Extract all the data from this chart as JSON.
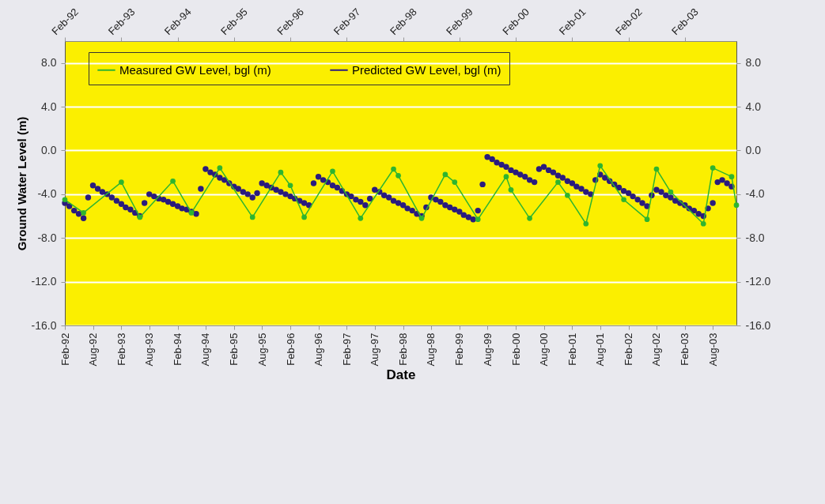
{
  "chart_data": {
    "type": "line",
    "xlabel": "Date",
    "ylabel": "Ground Water Level (m)",
    "legend": "top",
    "grid": "y",
    "marker": "circle",
    "xlim": [
      "1992-02",
      "2004-01"
    ],
    "x2lim": [
      "1992-02",
      "2004-01"
    ],
    "ylim": [
      -16,
      10
    ],
    "y2lim": [
      -16,
      10
    ],
    "yticks": [
      {
        "value": 8,
        "label": "8.0"
      },
      {
        "value": 4,
        "label": "4.0"
      },
      {
        "value": 0,
        "label": "0.0"
      },
      {
        "value": -4,
        "label": "-4.0"
      },
      {
        "value": -8,
        "label": "-8.0"
      },
      {
        "value": -12,
        "label": "-12.0"
      },
      {
        "value": -16,
        "label": "-16.0"
      }
    ],
    "y2ticks": [
      {
        "value": 8,
        "label": "8.0"
      },
      {
        "value": 4,
        "label": "4.0"
      },
      {
        "value": 0,
        "label": "0.0"
      },
      {
        "value": -4,
        "label": "-4.0"
      },
      {
        "value": -8,
        "label": "-8.0"
      },
      {
        "value": -12,
        "label": "-12.0"
      },
      {
        "value": -16,
        "label": "-16.0"
      }
    ],
    "xticks": [
      {
        "value": "1992-02",
        "label": "Feb-92"
      },
      {
        "value": "1992-08",
        "label": "Aug-92"
      },
      {
        "value": "1993-02",
        "label": "Feb-93"
      },
      {
        "value": "1993-08",
        "label": "Aug-93"
      },
      {
        "value": "1994-02",
        "label": "Feb-94"
      },
      {
        "value": "1994-08",
        "label": "Aug-94"
      },
      {
        "value": "1995-02",
        "label": "Feb-95"
      },
      {
        "value": "1995-08",
        "label": "Aug-95"
      },
      {
        "value": "1996-02",
        "label": "Feb-96"
      },
      {
        "value": "1996-08",
        "label": "Aug-96"
      },
      {
        "value": "1997-02",
        "label": "Feb-97"
      },
      {
        "value": "1997-08",
        "label": "Aug-97"
      },
      {
        "value": "1998-02",
        "label": "Feb-98"
      },
      {
        "value": "1998-08",
        "label": "Aug-98"
      },
      {
        "value": "1999-02",
        "label": "Feb-99"
      },
      {
        "value": "1999-08",
        "label": "Aug-99"
      },
      {
        "value": "2000-02",
        "label": "Feb-00"
      },
      {
        "value": "2000-08",
        "label": "Aug-00"
      },
      {
        "value": "2001-02",
        "label": "Feb-01"
      },
      {
        "value": "2001-08",
        "label": "Aug-01"
      },
      {
        "value": "2002-02",
        "label": "Feb-02"
      },
      {
        "value": "2002-08",
        "label": "Aug-02"
      },
      {
        "value": "2003-02",
        "label": "Feb-03"
      },
      {
        "value": "2003-08",
        "label": "Aug-03"
      }
    ],
    "x2ticks": [
      {
        "value": "1992-02",
        "label": "Feb-92"
      },
      {
        "value": "1993-02",
        "label": "Feb-93"
      },
      {
        "value": "1994-02",
        "label": "Feb-94"
      },
      {
        "value": "1995-02",
        "label": "Feb-95"
      },
      {
        "value": "1996-02",
        "label": "Feb-96"
      },
      {
        "value": "1997-02",
        "label": "Feb-97"
      },
      {
        "value": "1998-02",
        "label": "Feb-98"
      },
      {
        "value": "1999-02",
        "label": "Feb-99"
      },
      {
        "value": "2000-02",
        "label": "Feb-00"
      },
      {
        "value": "2001-02",
        "label": "Feb-01"
      },
      {
        "value": "2002-02",
        "label": "Feb-02"
      },
      {
        "value": "2003-02",
        "label": "Feb-03"
      }
    ],
    "series": [
      {
        "name": "Measured GW Level, bgl (m)",
        "color": "#2fb52f",
        "x": [
          "1992-02",
          "1992-06",
          "1993-02",
          "1993-06",
          "1994-01",
          "1994-05",
          "1994-11",
          "1995-06",
          "1995-12",
          "1996-02",
          "1996-05",
          "1996-11",
          "1997-05",
          "1997-12",
          "1998-01",
          "1998-06",
          "1998-11",
          "1999-01",
          "1999-06",
          "1999-12",
          "2000-01",
          "2000-05",
          "2000-11",
          "2001-01",
          "2001-05",
          "2001-08",
          "2002-01",
          "2002-06",
          "2002-08",
          "2002-11",
          "2003-06",
          "2003-08",
          "2003-12",
          "2004-01"
        ],
        "values": [
          -4.5,
          -5.7,
          -2.9,
          -6.1,
          -2.8,
          -5.7,
          -1.6,
          -6.1,
          -2.0,
          -3.2,
          -6.1,
          -1.9,
          -6.2,
          -1.7,
          -2.3,
          -6.2,
          -2.2,
          -2.9,
          -6.3,
          -2.4,
          -3.6,
          -6.2,
          -2.9,
          -4.1,
          -6.7,
          -1.4,
          -4.5,
          -6.3,
          -1.7,
          -3.8,
          -6.7,
          -1.6,
          -2.4,
          -5.0
        ]
      },
      {
        "name": "Predicted GW Level, bgl (m)",
        "type": "scatter",
        "axis": "y2",
        "color": "#2a1b7e",
        "x": [
          "1992-02",
          "1992-03",
          "1992-04",
          "1992-05",
          "1992-06",
          "1992-07",
          "1992-08",
          "1992-09",
          "1992-10",
          "1992-11",
          "1992-12",
          "1993-01",
          "1993-02",
          "1993-03",
          "1993-04",
          "1993-05",
          "1993-06",
          "1993-07",
          "1993-08",
          "1993-09",
          "1993-10",
          "1993-11",
          "1993-12",
          "1994-01",
          "1994-02",
          "1994-03",
          "1994-04",
          "1994-05",
          "1994-06",
          "1994-07",
          "1994-08",
          "1994-09",
          "1994-10",
          "1994-11",
          "1994-12",
          "1995-01",
          "1995-02",
          "1995-03",
          "1995-04",
          "1995-05",
          "1995-06",
          "1995-07",
          "1995-08",
          "1995-09",
          "1995-10",
          "1995-11",
          "1995-12",
          "1996-01",
          "1996-02",
          "1996-03",
          "1996-04",
          "1996-05",
          "1996-06",
          "1996-07",
          "1996-08",
          "1996-09",
          "1996-10",
          "1996-11",
          "1996-12",
          "1997-01",
          "1997-02",
          "1997-03",
          "1997-04",
          "1997-05",
          "1997-06",
          "1997-07",
          "1997-08",
          "1997-09",
          "1997-10",
          "1997-11",
          "1997-12",
          "1998-01",
          "1998-02",
          "1998-03",
          "1998-04",
          "1998-05",
          "1998-06",
          "1998-07",
          "1998-08",
          "1998-09",
          "1998-10",
          "1998-11",
          "1998-12",
          "1999-01",
          "1999-02",
          "1999-03",
          "1999-04",
          "1999-05",
          "1999-06",
          "1999-07",
          "1999-08",
          "1999-09",
          "1999-10",
          "1999-11",
          "1999-12",
          "2000-01",
          "2000-02",
          "2000-03",
          "2000-04",
          "2000-05",
          "2000-06",
          "2000-07",
          "2000-08",
          "2000-09",
          "2000-10",
          "2000-11",
          "2000-12",
          "2001-01",
          "2001-02",
          "2001-03",
          "2001-04",
          "2001-05",
          "2001-06",
          "2001-07",
          "2001-08",
          "2001-09",
          "2001-10",
          "2001-11",
          "2001-12",
          "2002-01",
          "2002-02",
          "2002-03",
          "2002-04",
          "2002-05",
          "2002-06",
          "2002-07",
          "2002-08",
          "2002-09",
          "2002-10",
          "2002-11",
          "2002-12",
          "2003-01",
          "2003-02",
          "2003-03",
          "2003-04",
          "2003-05",
          "2003-06",
          "2003-07",
          "2003-08",
          "2003-09",
          "2003-10",
          "2003-11",
          "2003-12"
        ],
        "values": [
          -4.8,
          -5.1,
          -5.5,
          -5.8,
          -6.2,
          -4.3,
          -3.2,
          -3.5,
          -3.8,
          -4.0,
          -4.3,
          -4.6,
          -4.9,
          -5.2,
          -5.4,
          -5.7,
          -6.0,
          -4.8,
          -4.0,
          -4.2,
          -4.4,
          -4.5,
          -4.7,
          -4.9,
          -5.1,
          -5.3,
          -5.4,
          -5.6,
          -5.8,
          -3.5,
          -1.7,
          -2.0,
          -2.2,
          -2.5,
          -2.7,
          -3.0,
          -3.3,
          -3.5,
          -3.8,
          -4.0,
          -4.3,
          -3.9,
          -3.0,
          -3.2,
          -3.4,
          -3.6,
          -3.8,
          -4.0,
          -4.2,
          -4.4,
          -4.6,
          -4.8,
          -5.0,
          -3.0,
          -2.4,
          -2.7,
          -2.9,
          -3.2,
          -3.4,
          -3.7,
          -4.0,
          -4.2,
          -4.5,
          -4.7,
          -5.0,
          -4.4,
          -3.6,
          -3.8,
          -4.1,
          -4.3,
          -4.6,
          -4.8,
          -5.0,
          -5.3,
          -5.5,
          -5.8,
          -6.0,
          -5.2,
          -4.3,
          -4.5,
          -4.7,
          -5.0,
          -5.2,
          -5.4,
          -5.6,
          -5.9,
          -6.1,
          -6.3,
          -5.5,
          -3.1,
          -0.6,
          -0.8,
          -1.1,
          -1.3,
          -1.5,
          -1.8,
          -2.0,
          -2.2,
          -2.4,
          -2.7,
          -2.9,
          -1.7,
          -1.5,
          -1.8,
          -2.0,
          -2.3,
          -2.5,
          -2.8,
          -3.0,
          -3.3,
          -3.5,
          -3.8,
          -4.0,
          -2.7,
          -2.2,
          -2.5,
          -2.8,
          -3.1,
          -3.4,
          -3.7,
          -3.9,
          -4.2,
          -4.5,
          -4.8,
          -5.1,
          -4.1,
          -3.6,
          -3.8,
          -4.1,
          -4.3,
          -4.6,
          -4.8,
          -5.0,
          -5.3,
          -5.5,
          -5.8,
          -6.0,
          -5.3,
          -4.8,
          -2.9,
          -2.7,
          -3.0,
          -3.3
        ]
      }
    ]
  }
}
